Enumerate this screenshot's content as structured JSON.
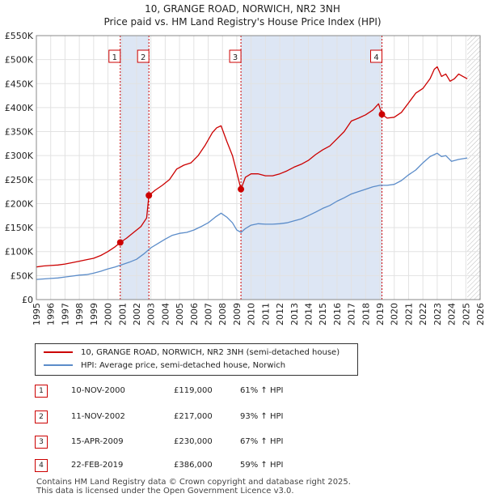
{
  "title_line1": "10, GRANGE ROAD, NORWICH, NR2 3NH",
  "title_line2": "Price paid vs. HM Land Registry's House Price Index (HPI)",
  "legend": {
    "property_label": "10, GRANGE ROAD, NORWICH, NR2 3NH (semi-detached house)",
    "hpi_label": "HPI: Average price, semi-detached house, Norwich"
  },
  "colors": {
    "property": "#cc0000",
    "hpi": "#5b8cc9",
    "band": "#dde6f4",
    "grid": "#e2e2e2",
    "hatch": "#bbbbbb"
  },
  "sales": [
    {
      "num": "1",
      "date": "10-NOV-2000",
      "price": "£119,000",
      "hpi": "61% ↑ HPI"
    },
    {
      "num": "2",
      "date": "11-NOV-2002",
      "price": "£217,000",
      "hpi": "93% ↑ HPI"
    },
    {
      "num": "3",
      "date": "15-APR-2009",
      "price": "£230,000",
      "hpi": "67% ↑ HPI"
    },
    {
      "num": "4",
      "date": "22-FEB-2019",
      "price": "£386,000",
      "hpi": "59% ↑ HPI"
    }
  ],
  "footer": {
    "line1": "Contains HM Land Registry data © Crown copyright and database right 2025.",
    "line2": "This data is licensed under the Open Government Licence v3.0."
  },
  "chart_data": {
    "type": "line",
    "xlim": [
      1995,
      2026
    ],
    "ylim": [
      0,
      550000
    ],
    "x_ticks": [
      1995,
      1996,
      1997,
      1998,
      1999,
      2000,
      2001,
      2002,
      2003,
      2004,
      2005,
      2006,
      2007,
      2008,
      2009,
      2010,
      2011,
      2012,
      2013,
      2014,
      2015,
      2016,
      2017,
      2018,
      2019,
      2020,
      2021,
      2022,
      2023,
      2024,
      2025,
      2026
    ],
    "x_tick_labels": [
      "1995",
      "1996",
      "1997",
      "1998",
      "1999",
      "2000",
      "2001",
      "2002",
      "2003",
      "2004",
      "2005",
      "2006",
      "2007",
      "2008",
      "2009",
      "2010",
      "2011",
      "2012",
      "2013",
      "2014",
      "2015",
      "2016",
      "2017",
      "2018",
      "2019",
      "2020",
      "2021",
      "2022",
      "2023",
      "2024",
      "2025",
      "2026"
    ],
    "y_ticks": [
      0,
      50000,
      100000,
      150000,
      200000,
      250000,
      300000,
      350000,
      400000,
      450000,
      500000,
      550000
    ],
    "y_tick_labels": [
      "£0",
      "£50K",
      "£100K",
      "£150K",
      "£200K",
      "£250K",
      "£300K",
      "£350K",
      "£400K",
      "£450K",
      "£500K",
      "£550K"
    ],
    "shaded_ranges": [
      [
        2000.86,
        2002.86
      ],
      [
        2009.29,
        2019.14
      ]
    ],
    "future_from": 2025.1,
    "markers": [
      {
        "label": "1",
        "x": 2000.86,
        "y": 119000
      },
      {
        "label": "2",
        "x": 2002.86,
        "y": 217000
      },
      {
        "label": "3",
        "x": 2009.29,
        "y": 230000
      },
      {
        "label": "4",
        "x": 2019.14,
        "y": 386000
      }
    ],
    "series": [
      {
        "name": "10, GRANGE ROAD, NORWICH, NR2 3NH (semi-detached house)",
        "x": [
          1995,
          1995.5,
          1996,
          1996.5,
          1997,
          1997.5,
          1998,
          1998.5,
          1999,
          1999.5,
          2000,
          2000.5,
          2000.86,
          2001.3,
          2001.8,
          2002.3,
          2002.7,
          2002.86,
          2003.3,
          2003.8,
          2004.3,
          2004.8,
          2005.3,
          2005.8,
          2006.3,
          2006.8,
          2007.3,
          2007.6,
          2007.9,
          2008.3,
          2008.7,
          2009.0,
          2009.29,
          2009.6,
          2010.0,
          2010.5,
          2011,
          2011.5,
          2012,
          2012.5,
          2013,
          2013.5,
          2014,
          2014.5,
          2015,
          2015.5,
          2016,
          2016.5,
          2017,
          2017.5,
          2018,
          2018.5,
          2018.9,
          2019.14,
          2019.5,
          2020,
          2020.5,
          2021,
          2021.5,
          2022,
          2022.5,
          2022.8,
          2023,
          2023.3,
          2023.6,
          2023.9,
          2024.2,
          2024.5,
          2024.8,
          2025.1
        ],
        "y": [
          68000,
          70000,
          71000,
          72000,
          74000,
          77000,
          80000,
          83000,
          86000,
          92000,
          100000,
          110000,
          119000,
          128000,
          140000,
          152000,
          170000,
          217000,
          228000,
          238000,
          250000,
          272000,
          280000,
          285000,
          300000,
          322000,
          348000,
          358000,
          362000,
          330000,
          300000,
          265000,
          230000,
          255000,
          262000,
          262000,
          258000,
          258000,
          262000,
          268000,
          276000,
          282000,
          290000,
          302000,
          312000,
          320000,
          335000,
          350000,
          372000,
          378000,
          385000,
          395000,
          408000,
          386000,
          378000,
          380000,
          390000,
          410000,
          430000,
          440000,
          460000,
          480000,
          485000,
          465000,
          470000,
          455000,
          460000,
          470000,
          465000,
          460000
        ]
      },
      {
        "name": "HPI: Average price, semi-detached house, Norwich",
        "x": [
          1995,
          1995.5,
          1996,
          1996.5,
          1997,
          1997.5,
          1998,
          1998.5,
          1999,
          1999.5,
          2000,
          2000.5,
          2001,
          2001.5,
          2002,
          2002.5,
          2003,
          2003.5,
          2004,
          2004.5,
          2005,
          2005.5,
          2006,
          2006.5,
          2007,
          2007.5,
          2007.9,
          2008.3,
          2008.7,
          2009.0,
          2009.3,
          2009.6,
          2010,
          2010.5,
          2011,
          2011.5,
          2012,
          2012.5,
          2013,
          2013.5,
          2014,
          2014.5,
          2015,
          2015.5,
          2016,
          2016.5,
          2017,
          2017.5,
          2018,
          2018.5,
          2019,
          2019.5,
          2020,
          2020.5,
          2021,
          2021.5,
          2022,
          2022.5,
          2023,
          2023.3,
          2023.6,
          2024,
          2024.5,
          2025.1
        ],
        "y": [
          42000,
          43000,
          44000,
          45000,
          47000,
          49000,
          51000,
          52000,
          55000,
          59000,
          64000,
          68000,
          73000,
          78000,
          84000,
          95000,
          108000,
          117000,
          126000,
          134000,
          138000,
          140000,
          145000,
          152000,
          160000,
          172000,
          180000,
          172000,
          160000,
          145000,
          140000,
          148000,
          155000,
          158000,
          157000,
          157000,
          158000,
          160000,
          164000,
          168000,
          175000,
          182000,
          190000,
          196000,
          205000,
          212000,
          220000,
          225000,
          230000,
          235000,
          238000,
          238000,
          240000,
          248000,
          260000,
          270000,
          285000,
          298000,
          305000,
          298000,
          300000,
          288000,
          292000,
          295000
        ]
      }
    ]
  }
}
